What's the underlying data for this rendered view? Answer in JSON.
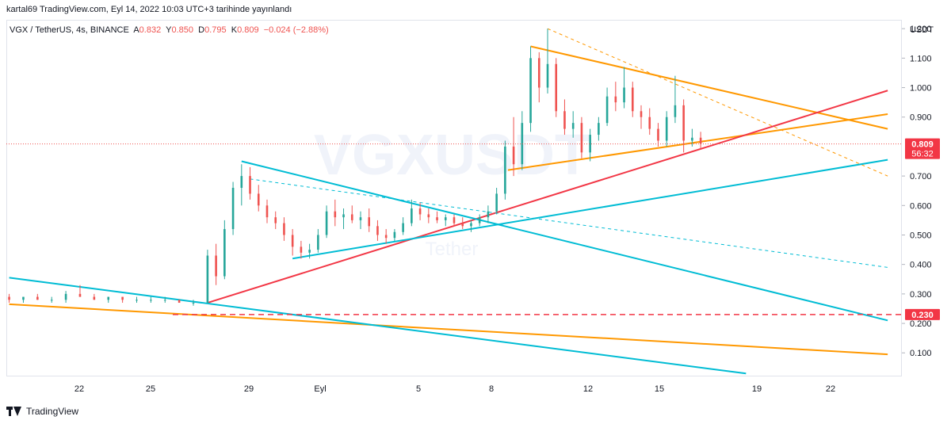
{
  "header": {
    "publisher_line": "kartal69 TradingView.com, Eyl 14, 2022 10:03 UTC+3 tarihinde yayınlandı"
  },
  "symbol_bar": {
    "symbol": "VGX / TetherUS, 4s, BINANCE",
    "open_label": "A",
    "open": "0.832",
    "high_label": "Y",
    "high": "0.850",
    "low_label": "D",
    "low": "0.795",
    "close_label": "K",
    "close": "0.809",
    "change": "−0.024 (−2.88%)"
  },
  "footer": {
    "brand": "TradingView"
  },
  "watermark": {
    "symbol": "VGXUSDT",
    "sub": "Tether"
  },
  "colors": {
    "up": "#26a69a",
    "down": "#ef5350",
    "orange": "#ff9800",
    "cyan": "#00bcd4",
    "red_line": "#f23645",
    "label_red": "#f23645"
  },
  "chart_data": {
    "type": "candlestick",
    "currency_label": "USDT",
    "y_ticks": [
      "1.200",
      "1.100",
      "1.000",
      "0.900",
      "0.700",
      "0.600",
      "0.500",
      "0.400",
      "0.300",
      "0.200",
      "0.100"
    ],
    "ylim": [
      0.02,
      1.23
    ],
    "x_ticks": [
      "22",
      "25",
      "29",
      "Eyl",
      "5",
      "8",
      "12",
      "15",
      "19",
      "22"
    ],
    "x_range_days": [
      "Aug 19 2022",
      "Sep 25 2022"
    ],
    "last_price": {
      "value": 0.809,
      "label": "0.809",
      "countdown": "56:32"
    },
    "horizontal_level": {
      "value": 0.23,
      "label": "0.230"
    },
    "candles": [
      [
        19.0,
        0.29,
        0.3,
        0.27,
        0.28
      ],
      [
        19.5,
        0.28,
        0.29,
        0.27,
        0.29
      ],
      [
        20.0,
        0.29,
        0.3,
        0.28,
        0.28
      ],
      [
        20.5,
        0.28,
        0.29,
        0.27,
        0.28
      ],
      [
        21.0,
        0.28,
        0.31,
        0.27,
        0.3
      ],
      [
        21.5,
        0.3,
        0.33,
        0.29,
        0.29
      ],
      [
        22.0,
        0.29,
        0.3,
        0.28,
        0.28
      ],
      [
        22.5,
        0.28,
        0.29,
        0.27,
        0.29
      ],
      [
        23.0,
        0.29,
        0.29,
        0.27,
        0.28
      ],
      [
        23.5,
        0.28,
        0.29,
        0.27,
        0.28
      ],
      [
        24.0,
        0.28,
        0.29,
        0.27,
        0.28
      ],
      [
        24.5,
        0.28,
        0.29,
        0.27,
        0.28
      ],
      [
        25.0,
        0.28,
        0.28,
        0.27,
        0.27
      ],
      [
        25.5,
        0.27,
        0.28,
        0.26,
        0.27
      ],
      [
        26.0,
        0.27,
        0.45,
        0.27,
        0.43
      ],
      [
        26.3,
        0.43,
        0.47,
        0.33,
        0.36
      ],
      [
        26.6,
        0.36,
        0.55,
        0.35,
        0.52
      ],
      [
        26.9,
        0.52,
        0.68,
        0.5,
        0.66
      ],
      [
        27.2,
        0.66,
        0.74,
        0.6,
        0.7
      ],
      [
        27.5,
        0.7,
        0.73,
        0.62,
        0.64
      ],
      [
        27.8,
        0.64,
        0.67,
        0.58,
        0.6
      ],
      [
        28.1,
        0.6,
        0.62,
        0.54,
        0.56
      ],
      [
        28.4,
        0.56,
        0.58,
        0.52,
        0.54
      ],
      [
        28.7,
        0.54,
        0.56,
        0.48,
        0.5
      ],
      [
        29.0,
        0.5,
        0.52,
        0.43,
        0.46
      ],
      [
        29.3,
        0.46,
        0.48,
        0.42,
        0.44
      ],
      [
        29.6,
        0.44,
        0.47,
        0.42,
        0.45
      ],
      [
        29.9,
        0.45,
        0.52,
        0.44,
        0.5
      ],
      [
        30.2,
        0.5,
        0.6,
        0.49,
        0.58
      ],
      [
        30.5,
        0.58,
        0.62,
        0.53,
        0.56
      ],
      [
        30.8,
        0.56,
        0.59,
        0.52,
        0.57
      ],
      [
        31.1,
        0.57,
        0.6,
        0.54,
        0.55
      ],
      [
        31.4,
        0.55,
        0.58,
        0.52,
        0.56
      ],
      [
        31.7,
        0.56,
        0.59,
        0.51,
        0.53
      ],
      [
        32.0,
        0.53,
        0.55,
        0.48,
        0.5
      ],
      [
        32.3,
        0.5,
        0.52,
        0.47,
        0.49
      ],
      [
        32.6,
        0.49,
        0.52,
        0.48,
        0.51
      ],
      [
        32.9,
        0.51,
        0.56,
        0.5,
        0.54
      ],
      [
        33.2,
        0.54,
        0.62,
        0.53,
        0.59
      ],
      [
        33.5,
        0.59,
        0.61,
        0.55,
        0.57
      ],
      [
        33.8,
        0.57,
        0.59,
        0.54,
        0.56
      ],
      [
        34.1,
        0.56,
        0.58,
        0.54,
        0.55
      ],
      [
        34.4,
        0.55,
        0.57,
        0.53,
        0.56
      ],
      [
        34.7,
        0.56,
        0.57,
        0.53,
        0.54
      ],
      [
        35.0,
        0.54,
        0.56,
        0.52,
        0.53
      ],
      [
        35.3,
        0.53,
        0.55,
        0.51,
        0.54
      ],
      [
        35.6,
        0.54,
        0.57,
        0.53,
        0.56
      ],
      [
        35.9,
        0.56,
        0.6,
        0.54,
        0.58
      ],
      [
        36.2,
        0.58,
        0.66,
        0.57,
        0.64
      ],
      [
        36.5,
        0.64,
        0.82,
        0.62,
        0.8
      ],
      [
        36.8,
        0.8,
        0.9,
        0.7,
        0.74
      ],
      [
        37.1,
        0.74,
        0.92,
        0.72,
        0.88
      ],
      [
        37.4,
        0.88,
        1.14,
        0.85,
        1.1
      ],
      [
        37.7,
        1.1,
        1.12,
        0.95,
        1.0
      ],
      [
        38.0,
        1.0,
        1.2,
        0.98,
        1.08
      ],
      [
        38.3,
        1.08,
        1.1,
        0.9,
        0.92
      ],
      [
        38.6,
        0.92,
        0.96,
        0.84,
        0.86
      ],
      [
        38.9,
        0.86,
        0.92,
        0.83,
        0.88
      ],
      [
        39.2,
        0.88,
        0.9,
        0.76,
        0.78
      ],
      [
        39.5,
        0.78,
        0.86,
        0.75,
        0.84
      ],
      [
        39.8,
        0.84,
        0.9,
        0.82,
        0.88
      ],
      [
        40.1,
        0.88,
        1.0,
        0.87,
        0.97
      ],
      [
        40.4,
        0.97,
        1.02,
        0.92,
        0.95
      ],
      [
        40.7,
        0.95,
        1.07,
        0.93,
        1.0
      ],
      [
        41.0,
        1.0,
        1.02,
        0.9,
        0.92
      ],
      [
        41.3,
        0.92,
        0.94,
        0.86,
        0.9
      ],
      [
        41.6,
        0.9,
        0.93,
        0.84,
        0.86
      ],
      [
        41.9,
        0.86,
        0.88,
        0.8,
        0.82
      ],
      [
        42.2,
        0.82,
        0.92,
        0.8,
        0.9
      ],
      [
        42.5,
        0.9,
        1.04,
        0.88,
        0.94
      ],
      [
        42.8,
        0.94,
        0.96,
        0.78,
        0.82
      ],
      [
        43.1,
        0.82,
        0.86,
        0.8,
        0.83
      ],
      [
        43.4,
        0.83,
        0.85,
        0.79,
        0.81
      ]
    ],
    "trendlines": [
      {
        "color": "orange",
        "style": "solid",
        "x1": 37.4,
        "y1": 1.14,
        "x2": 50.0,
        "y2": 0.86
      },
      {
        "color": "orange",
        "style": "solid",
        "x1": 36.6,
        "y1": 0.72,
        "x2": 50.0,
        "y2": 0.91
      },
      {
        "color": "orange",
        "style": "dashed",
        "x1": 38.0,
        "y1": 1.2,
        "x2": 50.0,
        "y2": 0.7
      },
      {
        "color": "orange",
        "style": "solid",
        "x1": 19.0,
        "y1": 0.265,
        "x2": 50.0,
        "y2": 0.095
      },
      {
        "color": "red",
        "style": "solid",
        "x1": 26.0,
        "y1": 0.27,
        "x2": 50.0,
        "y2": 0.99
      },
      {
        "color": "cyan",
        "style": "solid",
        "x1": 27.2,
        "y1": 0.75,
        "x2": 50.0,
        "y2": 0.21
      },
      {
        "color": "cyan",
        "style": "solid",
        "x1": 29.0,
        "y1": 0.42,
        "x2": 50.0,
        "y2": 0.755
      },
      {
        "color": "cyan",
        "style": "dashed",
        "x1": 27.5,
        "y1": 0.69,
        "x2": 50.0,
        "y2": 0.39
      },
      {
        "color": "cyan",
        "style": "solid",
        "x1": 19.0,
        "y1": 0.355,
        "x2": 45.0,
        "y2": 0.03
      }
    ]
  }
}
